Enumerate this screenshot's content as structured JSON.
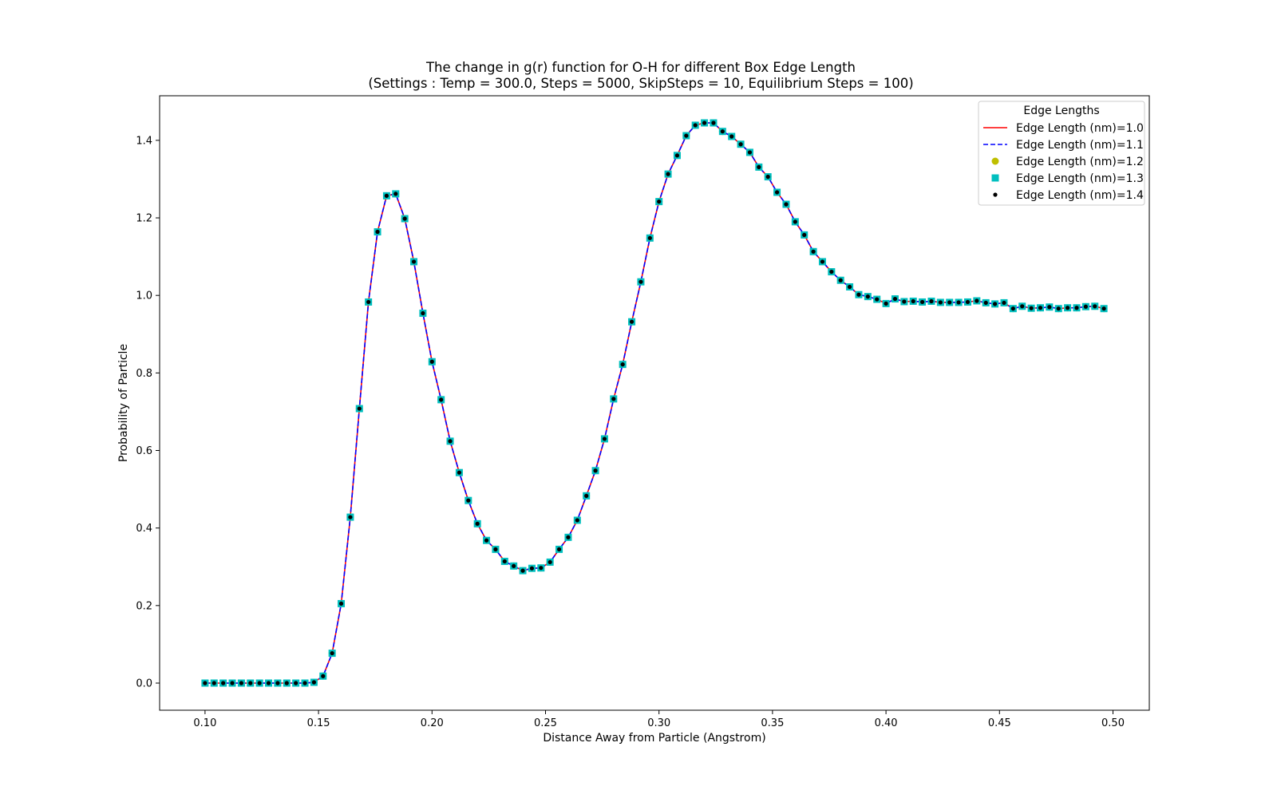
{
  "chart_data": {
    "type": "line",
    "title_lines": [
      "The change in g(r) function for O-H for different Box Edge Length",
      "(Settings : Temp = 300.0, Steps = 5000, SkipSteps = 10, Equilibrium Steps = 100)"
    ],
    "xlabel": "Distance Away from Particle (Angstrom)",
    "ylabel": "Probability of Particle",
    "xlim": [
      0.08,
      0.516
    ],
    "ylim": [
      -0.07,
      1.515
    ],
    "xticks": [
      0.1,
      0.15,
      0.2,
      0.25,
      0.3,
      0.35,
      0.4,
      0.45,
      0.5
    ],
    "xtick_labels": [
      "0.10",
      "0.15",
      "0.20",
      "0.25",
      "0.30",
      "0.35",
      "0.40",
      "0.45",
      "0.50"
    ],
    "yticks": [
      0.0,
      0.2,
      0.4,
      0.6,
      0.8,
      1.0,
      1.2,
      1.4
    ],
    "ytick_labels": [
      "0.0",
      "0.2",
      "0.4",
      "0.6",
      "0.8",
      "1.0",
      "1.2",
      "1.4"
    ],
    "grid": false,
    "legend": {
      "title": "Edge Lengths",
      "position": "top-right",
      "entries": [
        {
          "label": "Edge Length (nm)=1.0",
          "style": "solid-line",
          "color": "#ff0000"
        },
        {
          "label": "Edge Length (nm)=1.1",
          "style": "dashed-line",
          "color": "#0000ff"
        },
        {
          "label": "Edge Length (nm)=1.2",
          "style": "circle-marker",
          "color": "#bfbf00"
        },
        {
          "label": "Edge Length (nm)=1.3",
          "style": "square-marker",
          "color": "#00bfbf"
        },
        {
          "label": "Edge Length (nm)=1.4",
          "style": "point-marker",
          "color": "#000000"
        }
      ]
    },
    "x": [
      0.1,
      0.104,
      0.108,
      0.112,
      0.116,
      0.12,
      0.124,
      0.128,
      0.132,
      0.136,
      0.14,
      0.144,
      0.148,
      0.152,
      0.156,
      0.16,
      0.164,
      0.168,
      0.172,
      0.176,
      0.18,
      0.184,
      0.188,
      0.192,
      0.196,
      0.2,
      0.204,
      0.208,
      0.212,
      0.216,
      0.22,
      0.224,
      0.228,
      0.232,
      0.236,
      0.24,
      0.244,
      0.248,
      0.252,
      0.256,
      0.26,
      0.264,
      0.268,
      0.272,
      0.276,
      0.28,
      0.284,
      0.288,
      0.292,
      0.296,
      0.3,
      0.304,
      0.308,
      0.312,
      0.316,
      0.32,
      0.324,
      0.328,
      0.332,
      0.336,
      0.34,
      0.344,
      0.348,
      0.352,
      0.356,
      0.36,
      0.364,
      0.368,
      0.372,
      0.376,
      0.38,
      0.384,
      0.388,
      0.392,
      0.396,
      0.4,
      0.404,
      0.408,
      0.412,
      0.416,
      0.42,
      0.424,
      0.428,
      0.432,
      0.436,
      0.44,
      0.444,
      0.448,
      0.452,
      0.456,
      0.46,
      0.464,
      0.468,
      0.472,
      0.476,
      0.48,
      0.484,
      0.488,
      0.492,
      0.496
    ],
    "series": [
      {
        "name": "Edge Length (nm)=1.0",
        "style": "solid-line",
        "color": "#ff0000"
      },
      {
        "name": "Edge Length (nm)=1.1",
        "style": "dashed-line",
        "color": "#0000ff"
      },
      {
        "name": "Edge Length (nm)=1.2",
        "style": "circle-marker",
        "color": "#bfbf00"
      },
      {
        "name": "Edge Length (nm)=1.3",
        "style": "square-marker",
        "color": "#00bfbf"
      },
      {
        "name": "Edge Length (nm)=1.4",
        "style": "point-marker",
        "color": "#000000"
      }
    ],
    "values": [
      0.0,
      0.0,
      0.0,
      0.0,
      0.0,
      0.0,
      0.0,
      0.0,
      0.0,
      0.0,
      0.0,
      0.0,
      0.002,
      0.018,
      0.077,
      0.205,
      0.428,
      0.708,
      0.983,
      1.164,
      1.257,
      1.262,
      1.198,
      1.087,
      0.954,
      0.829,
      0.731,
      0.624,
      0.543,
      0.471,
      0.411,
      0.368,
      0.345,
      0.314,
      0.302,
      0.29,
      0.296,
      0.297,
      0.312,
      0.345,
      0.376,
      0.42,
      0.483,
      0.548,
      0.63,
      0.733,
      0.822,
      0.932,
      1.035,
      1.148,
      1.242,
      1.313,
      1.361,
      1.412,
      1.439,
      1.445,
      1.445,
      1.423,
      1.41,
      1.39,
      1.369,
      1.331,
      1.306,
      1.266,
      1.235,
      1.19,
      1.156,
      1.113,
      1.087,
      1.061,
      1.039,
      1.022,
      1.002,
      0.997,
      0.99,
      0.979,
      0.991,
      0.984,
      0.985,
      0.983,
      0.985,
      0.982,
      0.982,
      0.982,
      0.983,
      0.986,
      0.981,
      0.978,
      0.981,
      0.966,
      0.972,
      0.967,
      0.968,
      0.97,
      0.966,
      0.968,
      0.968,
      0.971,
      0.972,
      0.966
    ],
    "note_values": "Identical values for all five series."
  }
}
